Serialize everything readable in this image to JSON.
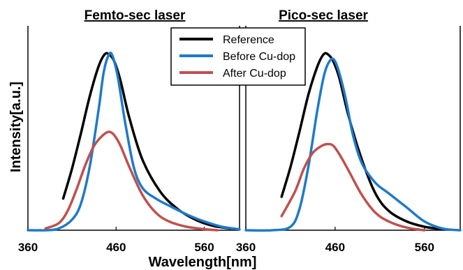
{
  "chart_data": {
    "type": "line",
    "ylabel": "Intensity[a.u.]",
    "xlabel": "Wavelength[nm]",
    "legend": {
      "placement": "top-center",
      "entries": [
        {
          "name": "Reference",
          "color": "#000000"
        },
        {
          "name": "Before Cu-dop",
          "color": "#1f7ac9"
        },
        {
          "name": "After Cu-dop",
          "color": "#c0504d"
        }
      ]
    },
    "panels": [
      {
        "title": "Femto-sec laser",
        "xlim": [
          360,
          600
        ],
        "xticks": [
          360,
          460,
          560
        ],
        "ylim": [
          0,
          1
        ],
        "series": [
          {
            "name": "Reference",
            "color": "#000000",
            "x": [
              400,
              410,
              420,
              430,
              440,
              447,
              452,
              458,
              465,
              475,
              490,
              510,
              530,
              550,
              570,
              590
            ],
            "y": [
              0.18,
              0.35,
              0.55,
              0.76,
              0.93,
              1.0,
              1.0,
              0.96,
              0.85,
              0.64,
              0.4,
              0.22,
              0.12,
              0.06,
              0.025,
              0.01
            ]
          },
          {
            "name": "Before Cu-dop",
            "color": "#1f7ac9",
            "x": [
              360,
              380,
              395,
              410,
              420,
              430,
              440,
              446,
              452,
              456,
              462,
              470,
              480,
              490,
              505,
              520,
              540,
              560,
              580,
              600
            ],
            "y": [
              0.0,
              0.0,
              0.01,
              0.06,
              0.15,
              0.36,
              0.68,
              0.9,
              1.0,
              0.99,
              0.87,
              0.62,
              0.36,
              0.24,
              0.18,
              0.14,
              0.09,
              0.05,
              0.02,
              0.005
            ]
          },
          {
            "name": "After Cu-dop",
            "color": "#c0504d",
            "x": [
              380,
              395,
              405,
              415,
              425,
              435,
              445,
              452,
              458,
              465,
              475,
              490,
              505,
              520,
              540,
              560,
              575
            ],
            "y": [
              0.01,
              0.04,
              0.11,
              0.23,
              0.37,
              0.48,
              0.54,
              0.56,
              0.54,
              0.48,
              0.36,
              0.2,
              0.1,
              0.05,
              0.02,
              0.006,
              0.0
            ]
          }
        ]
      },
      {
        "title": "Pico-sec laser",
        "xlim": [
          360,
          600
        ],
        "xticks": [
          360,
          460,
          560
        ],
        "ylim": [
          0,
          1
        ],
        "series": [
          {
            "name": "Reference",
            "color": "#000000",
            "x": [
              400,
              410,
              420,
              430,
              440,
              447,
              452,
              458,
              465,
              475,
              490,
              505,
              520,
              540,
              560,
              580
            ],
            "y": [
              0.19,
              0.36,
              0.56,
              0.77,
              0.93,
              1.0,
              1.0,
              0.96,
              0.86,
              0.65,
              0.4,
              0.21,
              0.11,
              0.05,
              0.02,
              0.005
            ]
          },
          {
            "name": "Before Cu-dop",
            "color": "#1f7ac9",
            "x": [
              360,
              390,
              410,
              420,
              430,
              440,
              448,
              455,
              460,
              466,
              473,
              480,
              490,
              505,
              520,
              540,
              560,
              580,
              600
            ],
            "y": [
              0.0,
              0.0,
              0.02,
              0.12,
              0.36,
              0.68,
              0.89,
              0.97,
              0.96,
              0.87,
              0.72,
              0.54,
              0.38,
              0.27,
              0.21,
              0.13,
              0.05,
              0.01,
              0.0
            ]
          },
          {
            "name": "After Cu-dop",
            "color": "#c0504d",
            "x": [
              400,
              415,
              425,
              435,
              445,
              452,
              458,
              465,
              475,
              490,
              505,
              520,
              540,
              560
            ],
            "y": [
              0.08,
              0.22,
              0.35,
              0.44,
              0.48,
              0.49,
              0.48,
              0.43,
              0.34,
              0.2,
              0.1,
              0.05,
              0.015,
              0.0
            ]
          }
        ]
      }
    ]
  }
}
